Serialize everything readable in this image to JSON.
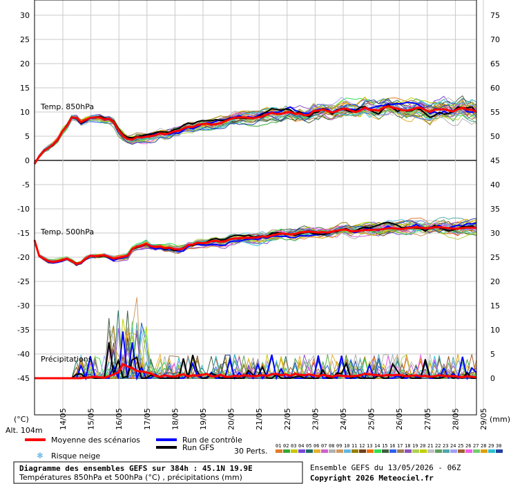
{
  "chart_data": {
    "type": "line",
    "title": "Diagramme des ensembles GEFS sur 384h : 45.1N 19.9E",
    "subtitle": "Températures 850hPa et 500hPa (°C) , précipitations (mm)",
    "left_unit": "(°C)",
    "right_unit": "(mm)",
    "altitude": "Alt. 104m",
    "left_axis": {
      "range": [
        -50,
        30
      ],
      "ticks": [
        "30",
        "25",
        "20",
        "15",
        "10",
        "5",
        "0",
        "-5",
        "-10",
        "-15",
        "-20",
        "-25",
        "-30",
        "-35",
        "-40",
        "-45"
      ]
    },
    "right_axis": {
      "ticks": [
        "75",
        "70",
        "65",
        "60",
        "55",
        "50",
        "45",
        "40",
        "35",
        "30",
        "25",
        "20",
        "15",
        "10",
        "5",
        "0"
      ]
    },
    "x_dates": [
      "14/05",
      "15/05",
      "16/05",
      "17/05",
      "18/05",
      "19/05",
      "20/05",
      "21/05",
      "22/05",
      "23/05",
      "24/05",
      "25/05",
      "26/05",
      "27/05",
      "28/05",
      "29/05"
    ],
    "grid": true,
    "panel_labels": {
      "t850": "Temp. 850hPa",
      "t500": "Temp. 500hPa",
      "precip": "Précipitations"
    },
    "series": {
      "t850_mean": [
        -0.7,
        0.8,
        2.0,
        2.6,
        3.3,
        4.3,
        6.0,
        7.2,
        8.9,
        8.8,
        7.9,
        8.4,
        8.8,
        8.9,
        8.9,
        8.5,
        8.6,
        8.0,
        6.3,
        5.1,
        4.4,
        4.3,
        4.8,
        4.7,
        4.9,
        5.0,
        5.2,
        5.6,
        5.4,
        5.6,
        6.0,
        6.1,
        6.6,
        6.9,
        6.9,
        7.3,
        7.5,
        7.6,
        7.4,
        7.5,
        7.7,
        8.1,
        8.5,
        8.8,
        8.9,
        8.9,
        8.8,
        8.7,
        8.9,
        9.1,
        9.5,
        9.8,
        9.6,
        9.6,
        9.9,
        10.0,
        9.6,
        9.7,
        9.3,
        9.4,
        10.2,
        10.3,
        10.5,
        10.2,
        9.9,
        10.2,
        10.6,
        10.7,
        10.3,
        10.0,
        10.3,
        10.9,
        10.5,
        10.4,
        10.3,
        10.9,
        11.2,
        10.9,
        10.7,
        10.4,
        10.3,
        10.5,
        10.8,
        10.9,
        10.4,
        10.0,
        10.5,
        10.5,
        10.6,
        10.3,
        10.1,
        10.6,
        10.9,
        10.5,
        10.5,
        10.0
      ],
      "t500_mean": [
        -16.5,
        -19.7,
        -20.3,
        -20.8,
        -21.0,
        -20.8,
        -20.6,
        -20.3,
        -20.8,
        -21.4,
        -21.1,
        -20.3,
        -19.7,
        -19.8,
        -19.7,
        -19.6,
        -19.9,
        -20.3,
        -20.1,
        -19.9,
        -19.7,
        -18.3,
        -17.8,
        -17.6,
        -17.2,
        -17.7,
        -17.9,
        -17.8,
        -18.1,
        -18.0,
        -18.3,
        -18.4,
        -18.2,
        -17.5,
        -17.4,
        -17.0,
        -17.1,
        -17.0,
        -16.7,
        -16.6,
        -16.8,
        -16.7,
        -16.3,
        -16.1,
        -16.1,
        -16.0,
        -16.0,
        -16.0,
        -15.9,
        -15.7,
        -15.8,
        -15.5,
        -15.3,
        -15.1,
        -15.2,
        -15.3,
        -15.2,
        -14.9,
        -14.8,
        -14.7,
        -14.8,
        -14.9,
        -14.8,
        -14.9,
        -14.7,
        -14.5,
        -14.3,
        -14.3,
        -14.6,
        -14.6,
        -14.5,
        -14.4,
        -14.4,
        -14.3,
        -14.3,
        -14.2,
        -14.0,
        -14.0,
        -14.1,
        -14.2,
        -14.0,
        -13.9,
        -13.8,
        -13.9,
        -14.0,
        -14.0,
        -13.8,
        -13.8,
        -13.9,
        -14.0,
        -14.1,
        -14.1,
        -14.0,
        -13.9,
        -13.9,
        -13.9
      ],
      "precip_mean": [
        0,
        0,
        0,
        0,
        0,
        0,
        0,
        0,
        0,
        0,
        0,
        0.1,
        0.2,
        0.3,
        0.2,
        0.1,
        0.4,
        0.8,
        1.2,
        2.9,
        2.4,
        2.1,
        1.5,
        1.4,
        1.2,
        1.0,
        0.5,
        0.3,
        0.6,
        0.4,
        0.3,
        0.6,
        0.8,
        0.4,
        0.6,
        0.5,
        0.7,
        0.9,
        0.4,
        0.4,
        0.7,
        0.3,
        0.3,
        0.5,
        0.4,
        0.6,
        0.5,
        0.4,
        0.5,
        0.6,
        0.5,
        0.8,
        0.9,
        0.6,
        0.8,
        0.5,
        0.9,
        0.7,
        0.6,
        0.8,
        0.6,
        0.4,
        0.7,
        0.5,
        0.3,
        0.6,
        0.5,
        0.4,
        0.4,
        0.5,
        0.6,
        0.9,
        0.8,
        0.7,
        0.6,
        0.5,
        0.7,
        0.6,
        0.7,
        0.6,
        0.4,
        0.5,
        0.6,
        0.4,
        0.5,
        0.3,
        0.4,
        0.6,
        0.5,
        0.4,
        0.5,
        0.3,
        0.2,
        0.4,
        0.3,
        0.2
      ]
    },
    "legend": {
      "mean": "Moyenne des scénarios",
      "control": "Run de contrôle",
      "gfs": "Run GFS",
      "snow": "Risque neige",
      "perts_label": "30 Perts.",
      "perts_numbers": [
        "01",
        "02",
        "03",
        "04",
        "05",
        "06",
        "07",
        "08",
        "09",
        "10",
        "11",
        "12",
        "13",
        "14",
        "15",
        "16",
        "17",
        "18",
        "19",
        "20",
        "21",
        "22",
        "23",
        "24",
        "25",
        "26",
        "27",
        "28",
        "29",
        "30"
      ]
    },
    "colors": {
      "mean": "#ff0000",
      "control": "#0000ff",
      "gfs": "#000000",
      "perts": [
        "#e07b2a",
        "#38a838",
        "#c8c800",
        "#7a48d8",
        "#207060",
        "#e8b030",
        "#d060d0",
        "#b0b0b0",
        "#d09a60",
        "#60b8e0",
        "#988000",
        "#704020",
        "#f07000",
        "#30e050",
        "#406040",
        "#3060f0",
        "#a08050",
        "#9050c0",
        "#b0d050",
        "#c0d000",
        "#c0c0c0",
        "#60a060",
        "#50a8a8",
        "#a0a0f0",
        "#a06030",
        "#f060f0",
        "#70d070",
        "#e0a000",
        "#30c0d0",
        "#2040a0"
      ]
    },
    "footer": {
      "run_info": "Ensemble GEFS du 13/05/2026 - 06Z",
      "copyright": "Copyright 2026 Meteociel.fr"
    }
  }
}
